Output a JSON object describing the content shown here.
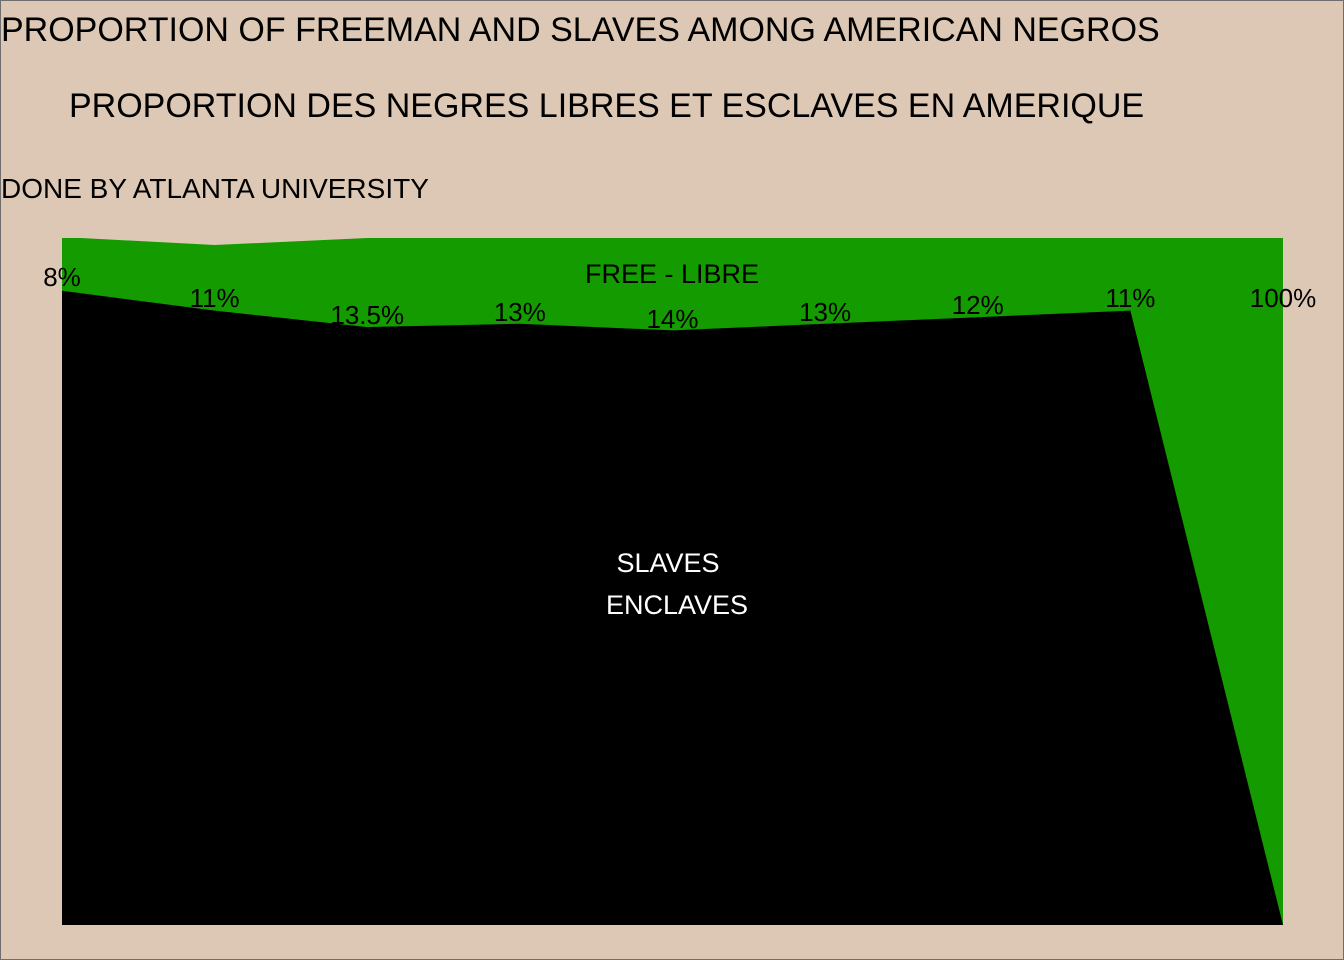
{
  "title": "PROPORTION OF FREEMAN AND SLAVES AMONG AMERICAN NEGROS",
  "subtitle": "PROPORTION DES NEGRES LIBRES ET ESCLAVES EN AMERIQUE",
  "credit": "DONE BY ATLANTA UNIVERSITY",
  "colors": {
    "background": "#dcc8b4",
    "free": "#149b00",
    "slaves": "#000000"
  },
  "chart_data": {
    "type": "area",
    "x": [
      0,
      1,
      2,
      3,
      4,
      5,
      6,
      7,
      8
    ],
    "ylim": [
      0,
      100
    ],
    "series": [
      {
        "name": "FREE - LIBRE",
        "values": [
          8,
          11,
          13.5,
          13,
          14,
          13,
          12,
          11,
          100
        ]
      },
      {
        "name": "SLAVES ENCLAVES",
        "values": [
          92,
          89,
          86.5,
          87,
          86,
          87,
          88,
          89,
          0
        ]
      }
    ],
    "labels": [
      "8%",
      "11%",
      "13.5%",
      "13%",
      "14%",
      "13%",
      "12%",
      "11%",
      "100%"
    ],
    "free_label": "FREE - LIBRE",
    "slaves_label_line1": "SLAVES",
    "slaves_label_line2": "ENCLAVES"
  }
}
